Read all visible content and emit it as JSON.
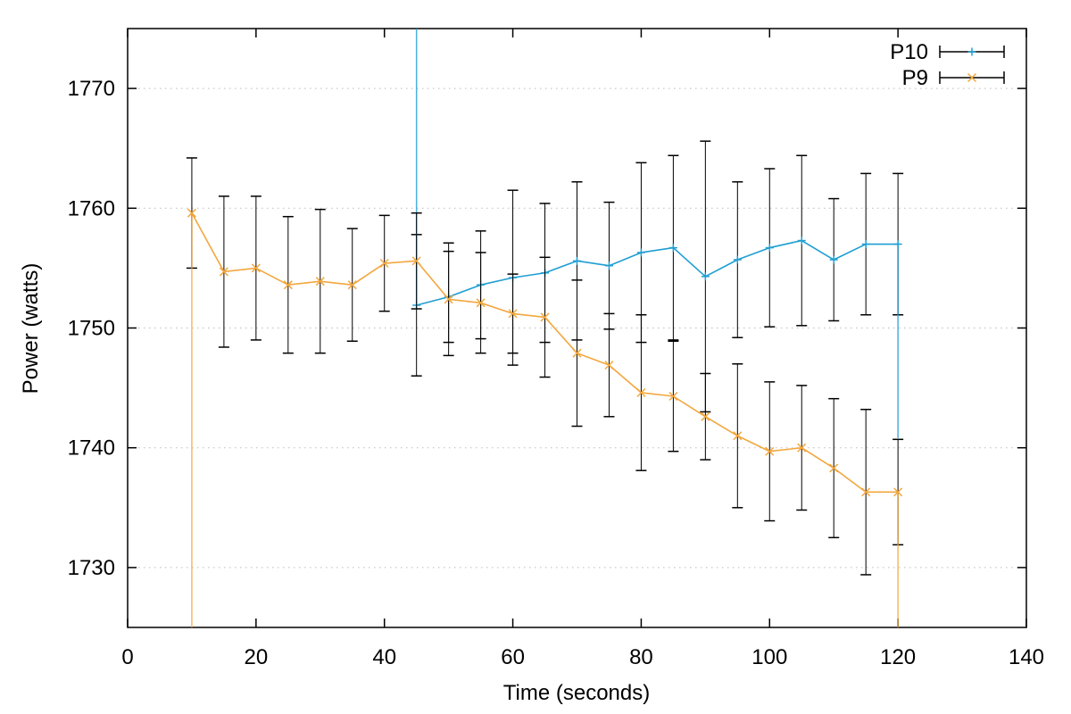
{
  "chart_data": {
    "type": "line",
    "title": "",
    "xlabel": "Time (seconds)",
    "ylabel": "Power (watts)",
    "xlim": [
      0,
      140
    ],
    "ylim": [
      1725,
      1775
    ],
    "x_ticks": [
      0,
      20,
      40,
      60,
      80,
      100,
      120,
      140
    ],
    "y_ticks": [
      1730,
      1740,
      1750,
      1760,
      1770
    ],
    "grid": {
      "horizontal": true,
      "vertical": false,
      "style": "dotted",
      "color": "#bbbbbb"
    },
    "errorbar_color": "#000000",
    "legend_position": "top-right-inside",
    "series": [
      {
        "name": "P10",
        "color": "#1f9ed2",
        "marker": "plus",
        "x": [
          45,
          50,
          55,
          60,
          65,
          70,
          75,
          80,
          85,
          90,
          95,
          100,
          105,
          110,
          115,
          120
        ],
        "values": [
          1751.9,
          1752.6,
          1753.6,
          1754.2,
          1754.6,
          1755.6,
          1755.2,
          1756.3,
          1756.7,
          1754.3,
          1755.7,
          1756.7,
          1757.3,
          1755.7,
          1757.0,
          1757.0
        ],
        "errors": [
          5.9,
          3.8,
          4.5,
          7.3,
          5.8,
          6.6,
          5.3,
          7.5,
          7.7,
          11.3,
          6.5,
          6.6,
          7.1,
          5.1,
          5.9,
          5.9
        ],
        "entry_spike": {
          "x": 45,
          "edge": "top"
        },
        "exit_spike": {
          "x": 120,
          "end_value": 1740.8
        }
      },
      {
        "name": "P9",
        "color": "#f2a73e",
        "marker": "cross",
        "x": [
          10,
          15,
          20,
          25,
          30,
          35,
          40,
          45,
          50,
          55,
          60,
          65,
          70,
          75,
          80,
          85,
          90,
          95,
          100,
          105,
          110,
          115,
          120
        ],
        "values": [
          1759.6,
          1754.7,
          1755.0,
          1753.6,
          1753.9,
          1753.6,
          1755.4,
          1755.6,
          1752.4,
          1752.1,
          1751.2,
          1750.9,
          1747.9,
          1746.9,
          1744.6,
          1744.3,
          1742.6,
          1741.0,
          1739.7,
          1740.0,
          1738.3,
          1736.3,
          1736.3
        ],
        "errors": [
          4.6,
          6.3,
          6.0,
          5.7,
          6.0,
          4.7,
          4.0,
          4.0,
          4.7,
          4.2,
          3.3,
          5.0,
          6.1,
          4.3,
          6.5,
          4.6,
          3.6,
          6.0,
          5.8,
          5.2,
          5.8,
          6.9,
          4.4
        ],
        "entry_spike": {
          "x": 10,
          "edge": "bottom"
        },
        "exit_spike": {
          "x": 120,
          "edge": "bottom"
        }
      }
    ]
  }
}
